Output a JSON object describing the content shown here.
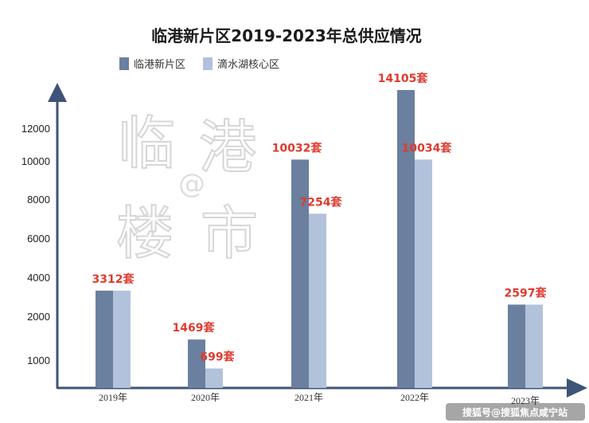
{
  "chart_data": {
    "type": "bar",
    "title": "临港新片区2019-2023年总供应情况",
    "categories": [
      "2019年",
      "2020年",
      "2021年",
      "2022年",
      "2023年"
    ],
    "series": [
      {
        "name": "临港新片区",
        "values": [
          3312,
          1469,
          10032,
          14105,
          2597
        ],
        "labels": [
          "3312套",
          "1469套",
          "10032套",
          "14105套",
          "2597套"
        ]
      },
      {
        "name": "滴水湖核心区",
        "values": [
          3312,
          699,
          7254,
          10034,
          2597
        ],
        "labels": [
          "",
          "699套",
          "7254套",
          "10034套",
          ""
        ]
      }
    ],
    "yticks": [
      "1000",
      "2000",
      "4000",
      "6000",
      "8000",
      "10000",
      "12000"
    ],
    "legend": "top-left",
    "grid": false
  },
  "colors": {
    "series1": "#6b7f9f",
    "series2": "#b2c2db",
    "axis": "#3e5478",
    "label": "#e03a2e"
  },
  "watermark": {
    "chars": [
      "临",
      "港",
      "楼",
      "市"
    ],
    "at": "@"
  },
  "footer": {
    "text": "搜狐号@搜狐焦点咸宁站"
  }
}
